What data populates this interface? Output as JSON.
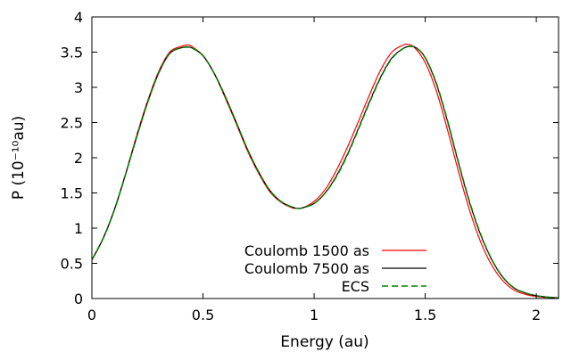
{
  "chart_data": {
    "type": "line",
    "xlabel": "Energy (au)",
    "ylabel": "P (10⁻¹⁰au)",
    "xlim": [
      0,
      2.1
    ],
    "ylim": [
      0,
      4
    ],
    "xticks": [
      0,
      0.5,
      1,
      1.5,
      2
    ],
    "xtick_labels": [
      "0",
      "0.5",
      "1",
      "1.5",
      "2"
    ],
    "yticks": [
      0,
      0.5,
      1,
      1.5,
      2,
      2.5,
      3,
      3.5,
      4
    ],
    "ytick_labels": [
      "0",
      "0.5",
      "1",
      "1.5",
      "2",
      "2.5",
      "3",
      "3.5",
      "4"
    ],
    "grid": false,
    "legend_position": "bottom-center",
    "series": [
      {
        "name": "Coulomb 1500 as",
        "color": "#ff0000",
        "dash": "solid",
        "x": [
          0,
          0.05,
          0.1,
          0.15,
          0.2,
          0.25,
          0.3,
          0.35,
          0.4,
          0.43,
          0.45,
          0.5,
          0.55,
          0.6,
          0.65,
          0.7,
          0.75,
          0.8,
          0.85,
          0.9,
          0.92,
          0.95,
          1.0,
          1.05,
          1.1,
          1.15,
          1.2,
          1.25,
          1.3,
          1.35,
          1.4,
          1.42,
          1.45,
          1.5,
          1.55,
          1.6,
          1.65,
          1.7,
          1.75,
          1.8,
          1.85,
          1.9,
          1.95,
          2.0,
          2.05,
          2.1
        ],
        "y": [
          0.55,
          0.85,
          1.25,
          1.75,
          2.3,
          2.8,
          3.22,
          3.5,
          3.58,
          3.6,
          3.58,
          3.45,
          3.2,
          2.85,
          2.48,
          2.1,
          1.78,
          1.52,
          1.37,
          1.29,
          1.28,
          1.29,
          1.38,
          1.55,
          1.82,
          2.15,
          2.52,
          2.9,
          3.25,
          3.5,
          3.6,
          3.61,
          3.57,
          3.35,
          2.95,
          2.4,
          1.8,
          1.25,
          0.8,
          0.47,
          0.25,
          0.12,
          0.06,
          0.03,
          0.015,
          0.01
        ]
      },
      {
        "name": "Coulomb 7500 as",
        "color": "#000000",
        "dash": "solid",
        "x": [
          0,
          0.05,
          0.1,
          0.15,
          0.2,
          0.25,
          0.3,
          0.35,
          0.4,
          0.43,
          0.45,
          0.5,
          0.55,
          0.6,
          0.65,
          0.7,
          0.75,
          0.8,
          0.85,
          0.9,
          0.93,
          0.95,
          1.0,
          1.05,
          1.1,
          1.15,
          1.2,
          1.25,
          1.3,
          1.35,
          1.4,
          1.43,
          1.46,
          1.5,
          1.55,
          1.6,
          1.65,
          1.7,
          1.75,
          1.8,
          1.85,
          1.9,
          1.95,
          2.0,
          2.05,
          2.1
        ],
        "y": [
          0.55,
          0.85,
          1.25,
          1.75,
          2.28,
          2.78,
          3.2,
          3.48,
          3.56,
          3.57,
          3.56,
          3.45,
          3.2,
          2.87,
          2.5,
          2.12,
          1.8,
          1.54,
          1.38,
          1.3,
          1.28,
          1.29,
          1.35,
          1.5,
          1.74,
          2.05,
          2.42,
          2.8,
          3.15,
          3.42,
          3.55,
          3.58,
          3.56,
          3.42,
          3.05,
          2.52,
          1.92,
          1.36,
          0.9,
          0.55,
          0.3,
          0.15,
          0.08,
          0.04,
          0.02,
          0.01
        ]
      },
      {
        "name": "ECS",
        "color": "#008000",
        "dash": "dashed",
        "x": [
          0,
          0.05,
          0.1,
          0.15,
          0.2,
          0.25,
          0.3,
          0.35,
          0.4,
          0.43,
          0.45,
          0.5,
          0.55,
          0.6,
          0.65,
          0.7,
          0.75,
          0.8,
          0.85,
          0.9,
          0.93,
          0.95,
          1.0,
          1.05,
          1.1,
          1.15,
          1.2,
          1.25,
          1.3,
          1.35,
          1.4,
          1.43,
          1.46,
          1.5,
          1.55,
          1.6,
          1.65,
          1.7,
          1.75,
          1.8,
          1.85,
          1.9,
          1.95,
          2.0,
          2.05,
          2.1
        ],
        "y": [
          0.55,
          0.85,
          1.25,
          1.75,
          2.28,
          2.78,
          3.2,
          3.48,
          3.56,
          3.57,
          3.56,
          3.45,
          3.2,
          2.87,
          2.5,
          2.12,
          1.8,
          1.54,
          1.38,
          1.3,
          1.28,
          1.29,
          1.35,
          1.5,
          1.73,
          2.04,
          2.41,
          2.79,
          3.14,
          3.41,
          3.55,
          3.58,
          3.56,
          3.42,
          3.06,
          2.53,
          1.93,
          1.37,
          0.91,
          0.55,
          0.3,
          0.15,
          0.08,
          0.04,
          0.02,
          0.01
        ]
      }
    ]
  }
}
